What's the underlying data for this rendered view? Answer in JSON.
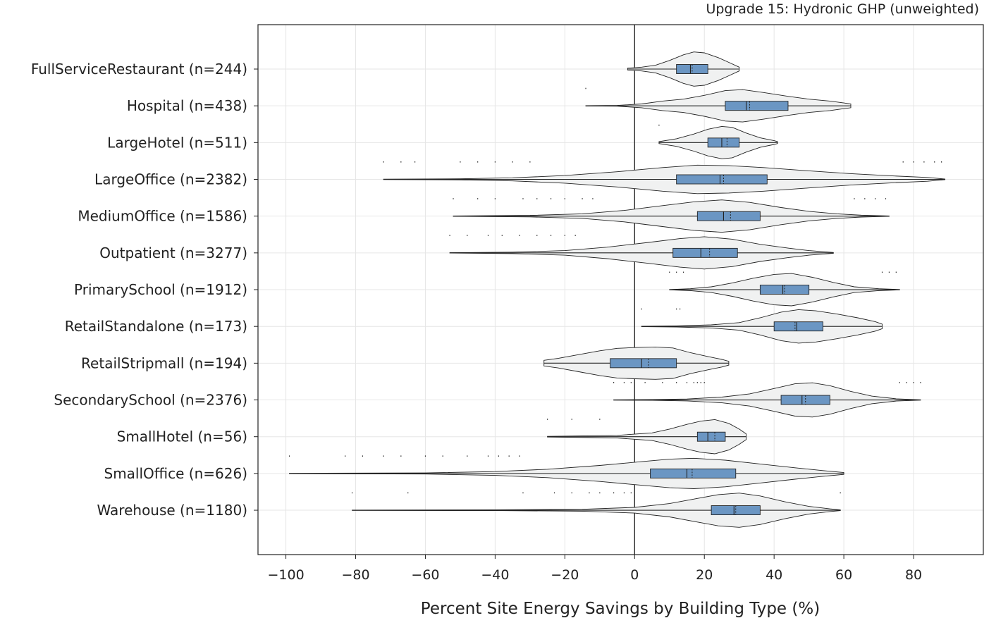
{
  "chart_data": {
    "type": "violin",
    "title": "Upgrade 15: Hydronic GHP (unweighted)",
    "xlabel": "Percent Site Energy Savings by Building Type (%)",
    "ylabel": "",
    "xlim": [
      -108,
      100
    ],
    "xticks": [
      -100,
      -80,
      -60,
      -40,
      -20,
      0,
      20,
      40,
      60,
      80
    ],
    "xtick_labels": [
      "−100",
      "−80",
      "−60",
      "−40",
      "−20",
      "0",
      "20",
      "40",
      "60",
      "80"
    ],
    "reference_line_x": 0,
    "grid": true,
    "colors": {
      "violin_fill": "#f0f1f1",
      "box_fill": "#6b96c3",
      "outline": "#222222",
      "grid": "#e6e6e6"
    },
    "categories": [
      {
        "label": "FullServiceRestaurant (n=244)",
        "min": -2,
        "q1": 12,
        "median": 16,
        "mean": 16.5,
        "q3": 21,
        "max": 30,
        "violin": [
          [
            -2,
            0.05
          ],
          [
            2,
            0.1
          ],
          [
            6,
            0.2
          ],
          [
            10,
            0.45
          ],
          [
            14,
            0.75
          ],
          [
            17,
            0.9
          ],
          [
            20,
            0.85
          ],
          [
            24,
            0.6
          ],
          [
            27,
            0.35
          ],
          [
            30,
            0.1
          ]
        ],
        "outliers": []
      },
      {
        "label": "Hospital (n=438)",
        "min": -14,
        "q1": 26,
        "median": 32,
        "mean": 33,
        "q3": 44,
        "max": 62,
        "violin": [
          [
            -14,
            0.01
          ],
          [
            -5,
            0.02
          ],
          [
            2,
            0.1
          ],
          [
            8,
            0.25
          ],
          [
            14,
            0.35
          ],
          [
            20,
            0.55
          ],
          [
            26,
            0.8
          ],
          [
            31,
            0.85
          ],
          [
            37,
            0.7
          ],
          [
            44,
            0.5
          ],
          [
            50,
            0.35
          ],
          [
            56,
            0.25
          ],
          [
            60,
            0.15
          ],
          [
            62,
            0.1
          ]
        ],
        "outliers": [
          -14
        ]
      },
      {
        "label": "LargeHotel (n=511)",
        "min": 7,
        "q1": 21,
        "median": 25,
        "mean": 26.5,
        "q3": 30,
        "max": 41,
        "violin": [
          [
            7,
            0.05
          ],
          [
            12,
            0.2
          ],
          [
            17,
            0.45
          ],
          [
            21,
            0.7
          ],
          [
            25,
            0.85
          ],
          [
            28,
            0.8
          ],
          [
            32,
            0.5
          ],
          [
            36,
            0.25
          ],
          [
            40,
            0.1
          ],
          [
            41,
            0.05
          ]
        ],
        "outliers": [
          7
        ]
      },
      {
        "label": "LargeOffice (n=2382)",
        "min": -72,
        "q1": 12,
        "median": 24.5,
        "mean": 25.5,
        "q3": 38,
        "max": 89,
        "violin": [
          [
            -72,
            0.01
          ],
          [
            -50,
            0.03
          ],
          [
            -35,
            0.08
          ],
          [
            -20,
            0.2
          ],
          [
            -5,
            0.4
          ],
          [
            8,
            0.62
          ],
          [
            18,
            0.75
          ],
          [
            27,
            0.72
          ],
          [
            37,
            0.62
          ],
          [
            50,
            0.45
          ],
          [
            62,
            0.3
          ],
          [
            74,
            0.18
          ],
          [
            84,
            0.1
          ],
          [
            89,
            0.02
          ]
        ],
        "outliers": [
          -72,
          -67,
          -63,
          -50,
          -45,
          -40,
          -35,
          -30,
          77,
          80,
          83,
          86,
          88
        ]
      },
      {
        "label": "MediumOffice (n=1586)",
        "min": -52,
        "q1": 18,
        "median": 25.5,
        "mean": 27.5,
        "q3": 36,
        "max": 73,
        "violin": [
          [
            -52,
            0.01
          ],
          [
            -30,
            0.04
          ],
          [
            -15,
            0.12
          ],
          [
            -3,
            0.3
          ],
          [
            8,
            0.55
          ],
          [
            17,
            0.75
          ],
          [
            25,
            0.85
          ],
          [
            33,
            0.72
          ],
          [
            42,
            0.45
          ],
          [
            50,
            0.25
          ],
          [
            58,
            0.12
          ],
          [
            65,
            0.05
          ],
          [
            73,
            0.01
          ]
        ],
        "outliers": [
          -52,
          -45,
          -40,
          -32,
          -28,
          -24,
          -20,
          -15,
          -12,
          63,
          66,
          69,
          72
        ]
      },
      {
        "label": "Outpatient (n=3277)",
        "min": -53,
        "q1": 11,
        "median": 19,
        "mean": 21.5,
        "q3": 29.5,
        "max": 57,
        "violin": [
          [
            -53,
            0.01
          ],
          [
            -35,
            0.04
          ],
          [
            -20,
            0.12
          ],
          [
            -8,
            0.3
          ],
          [
            4,
            0.55
          ],
          [
            13,
            0.75
          ],
          [
            20,
            0.85
          ],
          [
            28,
            0.72
          ],
          [
            36,
            0.45
          ],
          [
            44,
            0.25
          ],
          [
            50,
            0.12
          ],
          [
            57,
            0.02
          ]
        ],
        "outliers": [
          -53,
          -48,
          -42,
          -38,
          -33,
          -28,
          -24,
          -20,
          -17
        ]
      },
      {
        "label": "PrimarySchool (n=1912)",
        "min": 10,
        "q1": 36,
        "median": 42.5,
        "mean": 43,
        "q3": 50,
        "max": 76,
        "violin": [
          [
            10,
            0.01
          ],
          [
            16,
            0.05
          ],
          [
            22,
            0.15
          ],
          [
            28,
            0.35
          ],
          [
            34,
            0.6
          ],
          [
            40,
            0.8
          ],
          [
            45,
            0.85
          ],
          [
            51,
            0.65
          ],
          [
            57,
            0.38
          ],
          [
            63,
            0.15
          ],
          [
            70,
            0.05
          ],
          [
            76,
            0.01
          ]
        ],
        "outliers": [
          10,
          12,
          14,
          71,
          73,
          75
        ]
      },
      {
        "label": "RetailStandalone (n=173)",
        "min": 2,
        "q1": 40,
        "median": 46.5,
        "mean": 46,
        "q3": 54,
        "max": 71,
        "violin": [
          [
            2,
            0.01
          ],
          [
            12,
            0.03
          ],
          [
            22,
            0.08
          ],
          [
            30,
            0.2
          ],
          [
            36,
            0.45
          ],
          [
            42,
            0.75
          ],
          [
            47,
            0.88
          ],
          [
            52,
            0.82
          ],
          [
            58,
            0.65
          ],
          [
            64,
            0.45
          ],
          [
            69,
            0.25
          ],
          [
            71,
            0.12
          ]
        ],
        "outliers": [
          2,
          12,
          13
        ]
      },
      {
        "label": "RetailStripmall (n=194)",
        "min": -26,
        "q1": -7,
        "median": 2,
        "mean": 4,
        "q3": 12,
        "max": 27,
        "violin": [
          [
            -26,
            0.15
          ],
          [
            -22,
            0.25
          ],
          [
            -16,
            0.45
          ],
          [
            -10,
            0.65
          ],
          [
            -5,
            0.78
          ],
          [
            0,
            0.82
          ],
          [
            6,
            0.85
          ],
          [
            11,
            0.8
          ],
          [
            16,
            0.55
          ],
          [
            21,
            0.35
          ],
          [
            25,
            0.2
          ],
          [
            27,
            0.1
          ]
        ],
        "outliers": []
      },
      {
        "label": "SecondarySchool (n=2376)",
        "min": -6,
        "q1": 42,
        "median": 48,
        "mean": 49,
        "q3": 56,
        "max": 82,
        "violin": [
          [
            -6,
            0.01
          ],
          [
            5,
            0.02
          ],
          [
            15,
            0.05
          ],
          [
            25,
            0.15
          ],
          [
            33,
            0.32
          ],
          [
            40,
            0.6
          ],
          [
            46,
            0.85
          ],
          [
            51,
            0.9
          ],
          [
            56,
            0.75
          ],
          [
            62,
            0.45
          ],
          [
            68,
            0.2
          ],
          [
            75,
            0.06
          ],
          [
            82,
            0.01
          ]
        ],
        "outliers": [
          -6,
          -3,
          -1,
          0,
          3,
          8,
          12,
          15,
          17,
          18,
          19,
          20,
          76,
          78,
          80,
          82
        ]
      },
      {
        "label": "SmallHotel (n=56)",
        "min": -25,
        "q1": 18,
        "median": 21,
        "mean": 23,
        "q3": 26,
        "max": 32,
        "violin": [
          [
            -25,
            0.02
          ],
          [
            -15,
            0.04
          ],
          [
            -5,
            0.07
          ],
          [
            5,
            0.2
          ],
          [
            10,
            0.4
          ],
          [
            15,
            0.65
          ],
          [
            19,
            0.82
          ],
          [
            23,
            0.9
          ],
          [
            27,
            0.7
          ],
          [
            30,
            0.4
          ],
          [
            32,
            0.15
          ]
        ],
        "outliers": [
          -25,
          -18,
          -10
        ]
      },
      {
        "label": "SmallOffice (n=626)",
        "min": -99,
        "q1": 4.5,
        "median": 15,
        "mean": 16.5,
        "q3": 29,
        "max": 60,
        "violin": [
          [
            -99,
            0.01
          ],
          [
            -60,
            0.03
          ],
          [
            -40,
            0.1
          ],
          [
            -25,
            0.22
          ],
          [
            -10,
            0.42
          ],
          [
            2,
            0.62
          ],
          [
            10,
            0.75
          ],
          [
            17,
            0.8
          ],
          [
            26,
            0.7
          ],
          [
            36,
            0.5
          ],
          [
            46,
            0.3
          ],
          [
            54,
            0.15
          ],
          [
            60,
            0.05
          ]
        ],
        "outliers": [
          -99,
          -83,
          -78,
          -72,
          -67,
          -60,
          -55,
          -48,
          -42,
          -39,
          -36,
          -33
        ]
      },
      {
        "label": "Warehouse (n=1180)",
        "min": -81,
        "q1": 22,
        "median": 28.5,
        "mean": 29,
        "q3": 36,
        "max": 59,
        "violin": [
          [
            -81,
            0.01
          ],
          [
            -40,
            0.02
          ],
          [
            -15,
            0.05
          ],
          [
            0,
            0.15
          ],
          [
            10,
            0.35
          ],
          [
            18,
            0.62
          ],
          [
            24,
            0.82
          ],
          [
            30,
            0.9
          ],
          [
            36,
            0.75
          ],
          [
            43,
            0.45
          ],
          [
            50,
            0.2
          ],
          [
            56,
            0.07
          ],
          [
            59,
            0.02
          ]
        ],
        "outliers": [
          -81,
          -65,
          -32,
          -23,
          -18,
          -13,
          -10,
          -6,
          -3,
          -1,
          59
        ]
      }
    ]
  }
}
